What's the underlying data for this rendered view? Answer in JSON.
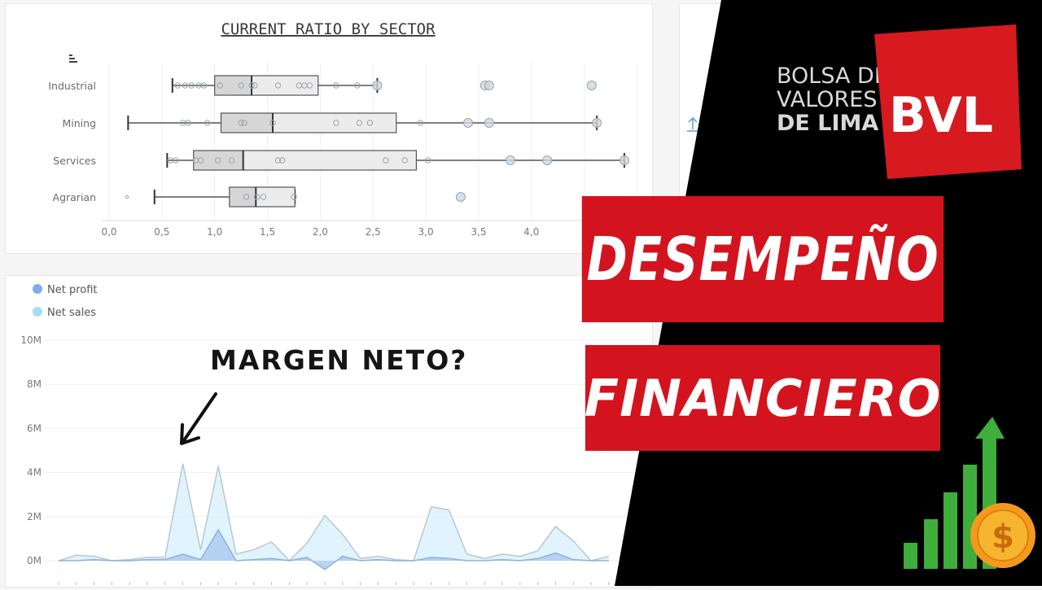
{
  "boxplot": {
    "title": "CURRENT RATIO BY SECTOR",
    "x_ticks": [
      "0,0",
      "0,5",
      "1,0",
      "1,5",
      "2,0",
      "2,5",
      "3,0",
      "3,5",
      "4,0"
    ],
    "categories": [
      "Industrial",
      "Mining",
      "Services",
      "Agrarian"
    ]
  },
  "area_chart": {
    "legend": [
      {
        "label": "Net profit",
        "color": "#7eaee3"
      },
      {
        "label": "Net sales",
        "color": "#a8dcf5"
      }
    ],
    "y_ticks": [
      "10M",
      "8M",
      "6M",
      "4M",
      "2M",
      "0M"
    ]
  },
  "annotation": {
    "text": "MARGEN NETO?",
    "icon": "arrow-down-left-icon"
  },
  "banners": {
    "line1": "DESEMPEÑO",
    "line2": "FINANCIERO"
  },
  "logo": {
    "line1": "BOLSA DE",
    "line2": "VALORES",
    "line3": "DE LIMA",
    "mark": "BVL"
  },
  "growth_icon": {
    "icon": "bar-chart-growth-icon",
    "coin_symbol": "$"
  },
  "chart_data": [
    {
      "type": "box",
      "title": "CURRENT RATIO BY SECTOR",
      "xlim": [
        -0.1,
        5.2
      ],
      "categories": [
        "Industrial",
        "Mining",
        "Services",
        "Agrarian"
      ],
      "boxes": [
        {
          "name": "Industrial",
          "min": 0.6,
          "q1": 1.0,
          "median": 1.35,
          "q3": 1.98,
          "max": 2.54,
          "points": [
            0.65,
            0.72,
            0.78,
            0.85,
            0.9,
            1.05,
            1.25,
            1.35,
            1.38,
            1.6,
            1.8,
            1.85,
            1.9,
            2.15,
            2.35,
            2.54,
            3.56,
            3.6,
            4.57
          ]
        },
        {
          "name": "Mining",
          "min": 0.18,
          "q1": 1.06,
          "median": 1.55,
          "q3": 2.72,
          "max": 4.62,
          "points": [
            0.7,
            0.75,
            0.93,
            1.25,
            1.28,
            1.55,
            2.15,
            2.37,
            2.47,
            2.95,
            3.4,
            3.6,
            4.62
          ]
        },
        {
          "name": "Services",
          "min": 0.55,
          "q1": 0.8,
          "median": 1.27,
          "q3": 2.91,
          "max": 4.88,
          "points": [
            0.58,
            0.63,
            0.82,
            0.87,
            1.03,
            1.16,
            1.6,
            1.64,
            2.62,
            2.8,
            3.02,
            3.8,
            4.15,
            4.88
          ]
        },
        {
          "name": "Agrarian",
          "min": 0.43,
          "q1": 1.14,
          "median": 1.39,
          "q3": 1.76,
          "max": 1.76,
          "points": [
            0.17,
            1.3,
            1.4,
            1.46,
            1.75,
            3.33
          ]
        }
      ]
    },
    {
      "type": "area",
      "ylim": [
        0,
        10
      ],
      "yunit": "M",
      "series": [
        {
          "name": "Net sales",
          "values": [
            0,
            0.25,
            0.2,
            0,
            0.05,
            0.15,
            0.15,
            4.4,
            0.5,
            4.3,
            0.3,
            0.5,
            0.85,
            0,
            0.8,
            2.05,
            1.2,
            0.1,
            0.2,
            0.05,
            0,
            2.45,
            2.3,
            0.3,
            0.1,
            0.3,
            0.2,
            0.45,
            1.55,
            0.9,
            0,
            0.2
          ]
        },
        {
          "name": "Net profit",
          "values": [
            0,
            0,
            0.05,
            0,
            0,
            0.05,
            0.05,
            0.3,
            0.05,
            1.4,
            0,
            0.05,
            0.1,
            0,
            0.15,
            -0.4,
            0.2,
            0,
            0.05,
            0,
            0,
            0.15,
            0.1,
            0,
            0,
            0.05,
            0,
            0.1,
            0.35,
            0.05,
            0,
            0
          ]
        }
      ]
    }
  ]
}
